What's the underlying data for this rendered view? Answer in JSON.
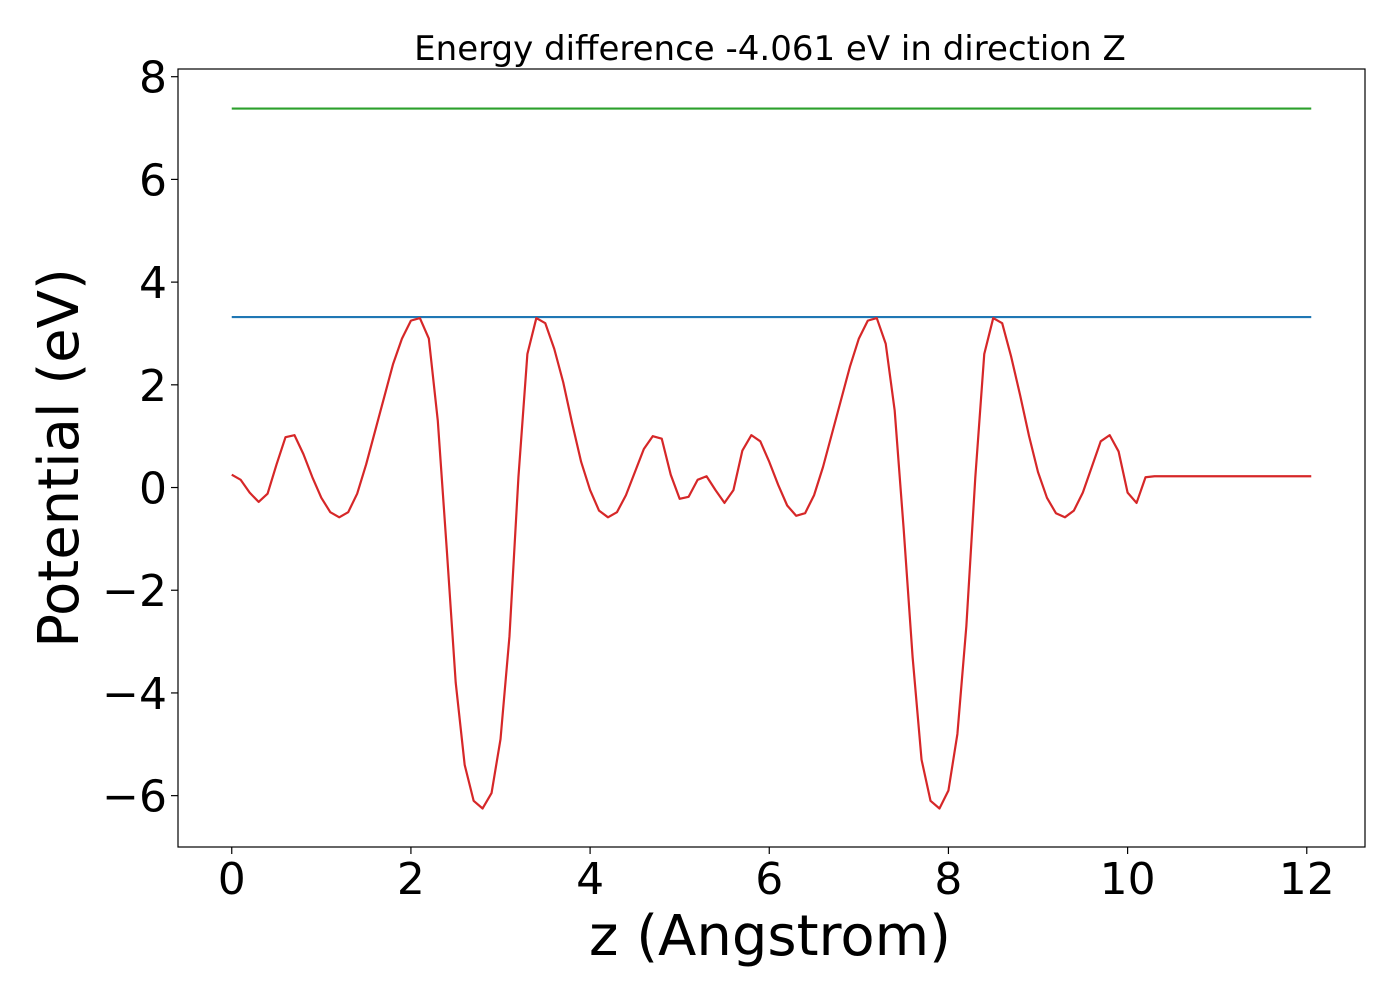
{
  "chart_data": {
    "type": "line",
    "title": "Energy difference -4.061 eV in direction Z",
    "xlabel": "z (Angstrom)",
    "ylabel": "Potential (eV)",
    "xlim": [
      -0.6,
      12.65
    ],
    "ylim": [
      -7.0,
      8.15
    ],
    "xticks": [
      0,
      2,
      4,
      6,
      8,
      10,
      12
    ],
    "yticks": [
      -6,
      -4,
      -2,
      0,
      2,
      4,
      6,
      8
    ],
    "xtick_labels": [
      "0",
      "2",
      "4",
      "6",
      "8",
      "10",
      "12"
    ],
    "ytick_labels": [
      "−6",
      "−4",
      "−2",
      "0",
      "2",
      "4",
      "6",
      "8"
    ],
    "grid": false,
    "legend": "none",
    "series": [
      {
        "color": "#2ca02c",
        "x": [
          0,
          12.05
        ],
        "y": [
          7.38,
          7.38
        ]
      },
      {
        "color": "#1f77b4",
        "x": [
          0,
          12.05
        ],
        "y": [
          3.32,
          3.32
        ]
      },
      {
        "color": "#d62728",
        "x": [
          0.0,
          0.1,
          0.2,
          0.3,
          0.4,
          0.5,
          0.6,
          0.7,
          0.8,
          0.9,
          1.0,
          1.1,
          1.2,
          1.3,
          1.4,
          1.5,
          1.6,
          1.7,
          1.8,
          1.9,
          2.0,
          2.1,
          2.2,
          2.3,
          2.4,
          2.5,
          2.6,
          2.7,
          2.8,
          2.9,
          3.0,
          3.1,
          3.2,
          3.3,
          3.4,
          3.5,
          3.6,
          3.7,
          3.8,
          3.9,
          4.0,
          4.1,
          4.2,
          4.3,
          4.4,
          4.5,
          4.6,
          4.7,
          4.8,
          4.9,
          5.0,
          5.1,
          5.2,
          5.3,
          5.4,
          5.5,
          5.6,
          5.7,
          5.8,
          5.9,
          6.0,
          6.1,
          6.2,
          6.3,
          6.4,
          6.5,
          6.6,
          6.7,
          6.8,
          6.9,
          7.0,
          7.1,
          7.2,
          7.3,
          7.4,
          7.5,
          7.6,
          7.7,
          7.8,
          7.9,
          8.0,
          8.1,
          8.2,
          8.3,
          8.4,
          8.5,
          8.6,
          8.7,
          8.8,
          8.9,
          9.0,
          9.1,
          9.2,
          9.3,
          9.4,
          9.5,
          9.6,
          9.7,
          9.8,
          9.9,
          10.0,
          10.1,
          10.2,
          10.3,
          10.4,
          10.5,
          10.6,
          10.7,
          10.8,
          10.9,
          11.0,
          11.1,
          11.2,
          11.3,
          11.4,
          11.5,
          11.6,
          11.7,
          11.8,
          11.9,
          12.0,
          12.05
        ],
        "y": [
          0.25,
          0.15,
          -0.1,
          -0.28,
          -0.12,
          0.45,
          0.98,
          1.02,
          0.65,
          0.2,
          -0.2,
          -0.48,
          -0.58,
          -0.48,
          -0.12,
          0.45,
          1.1,
          1.75,
          2.4,
          2.9,
          3.25,
          3.3,
          2.9,
          1.3,
          -1.2,
          -3.8,
          -5.4,
          -6.1,
          -6.25,
          -5.95,
          -4.9,
          -2.9,
          0.2,
          2.6,
          3.3,
          3.2,
          2.7,
          2.05,
          1.25,
          0.5,
          -0.05,
          -0.45,
          -0.58,
          -0.48,
          -0.15,
          0.3,
          0.75,
          1.0,
          0.95,
          0.25,
          -0.22,
          -0.18,
          0.15,
          0.22,
          -0.05,
          -0.3,
          -0.05,
          0.72,
          1.02,
          0.9,
          0.5,
          0.05,
          -0.35,
          -0.55,
          -0.5,
          -0.15,
          0.4,
          1.05,
          1.7,
          2.35,
          2.9,
          3.25,
          3.3,
          2.8,
          1.5,
          -0.8,
          -3.3,
          -5.3,
          -6.1,
          -6.25,
          -5.9,
          -4.8,
          -2.7,
          0.2,
          2.6,
          3.3,
          3.2,
          2.55,
          1.8,
          1.0,
          0.3,
          -0.2,
          -0.5,
          -0.58,
          -0.45,
          -0.1,
          0.4,
          0.9,
          1.02,
          0.7,
          -0.1,
          -0.3,
          0.2,
          0.22,
          0.22,
          0.22,
          0.22,
          0.22,
          0.22,
          0.22,
          0.22,
          0.22,
          0.22,
          0.22,
          0.22,
          0.22,
          0.22,
          0.22,
          0.22,
          0.22,
          0.22,
          0.22
        ]
      }
    ]
  }
}
